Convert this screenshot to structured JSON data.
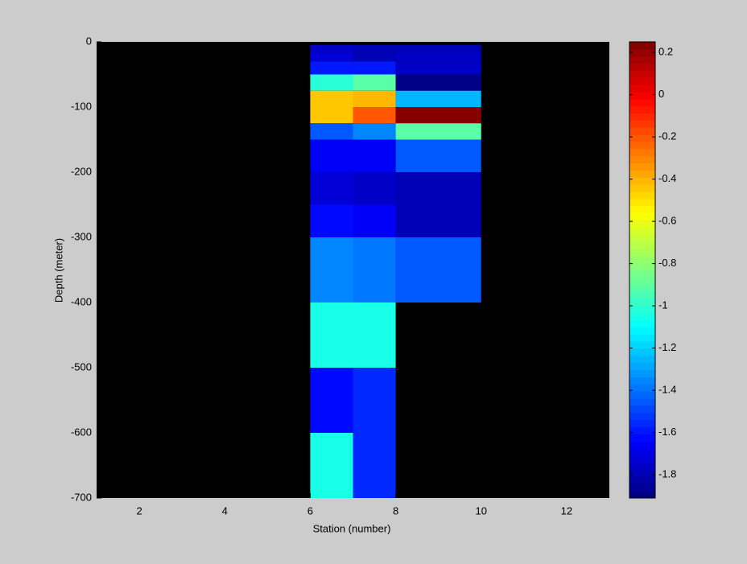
{
  "chart_data": {
    "type": "heatmap",
    "xlabel": "Station (number)",
    "ylabel": "Depth (meter)",
    "xlim": [
      1,
      13
    ],
    "ylim": [
      -700,
      0
    ],
    "xticks": [
      2,
      4,
      6,
      8,
      10,
      12
    ],
    "yticks": [
      0,
      -100,
      -200,
      -300,
      -400,
      -500,
      -600,
      -700
    ],
    "background": "#000000",
    "x_edges": [
      6,
      7,
      8,
      10
    ],
    "y_edges": [
      -5,
      -15,
      -30,
      -50,
      -75,
      -100,
      -125,
      -150,
      -200,
      -250,
      -300,
      -400,
      -500,
      -600,
      -700
    ],
    "values": [
      [
        -1.75,
        -1.8,
        -1.78
      ],
      [
        -1.72,
        -1.78,
        -1.76
      ],
      [
        -1.6,
        -1.58,
        -1.76
      ],
      [
        -1.0,
        -0.9,
        -1.91
      ],
      [
        -0.45,
        -0.4,
        -1.25
      ],
      [
        -0.45,
        -0.2,
        0.22
      ],
      [
        -1.45,
        -1.35,
        -0.9
      ],
      [
        -1.65,
        -1.65,
        -1.45
      ],
      [
        -1.72,
        -1.75,
        -1.78
      ],
      [
        -1.62,
        -1.65,
        -1.78
      ],
      [
        -1.35,
        -1.4,
        -1.45
      ],
      [
        -1.05,
        -1.05,
        null
      ],
      [
        -1.62,
        -1.55,
        null
      ],
      [
        -1.05,
        -1.55,
        null
      ]
    ],
    "colorbar": {
      "colormap": "jet",
      "levels": 64,
      "clim": [
        -1.91,
        0.25
      ],
      "ticks": [
        0.2,
        0,
        -0.2,
        -0.4,
        -0.6,
        -0.8,
        -1,
        -1.2,
        -1.4,
        -1.6,
        -1.8
      ]
    }
  }
}
